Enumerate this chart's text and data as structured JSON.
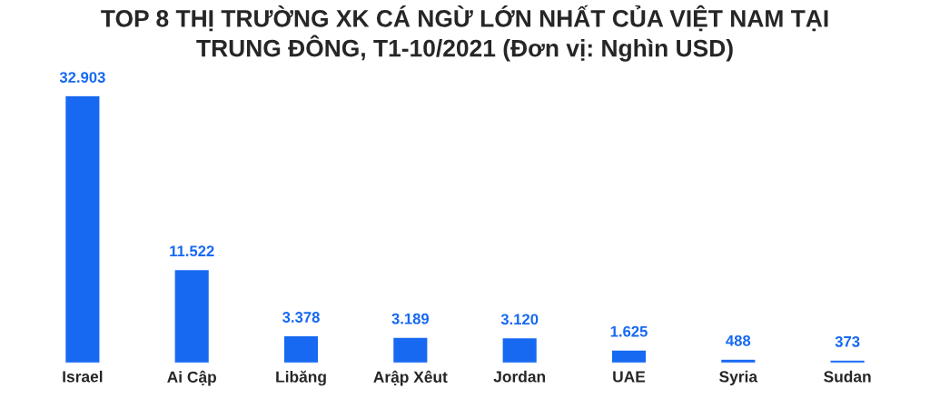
{
  "chart_data": {
    "type": "bar",
    "title": "TOP 8 THỊ TRƯỜNG XK CÁ NGỪ LỚN NHẤT CỦA VIỆT NAM TẠI\nTRUNG ĐÔNG, T1-10/2021 (Đơn vị: Nghìn USD)",
    "categories": [
      "Israel",
      "Ai Cập",
      "Libăng",
      "Arập Xêut",
      "Jordan",
      "UAE",
      "Syria",
      "Sudan"
    ],
    "values": [
      32903,
      11522,
      3378,
      3189,
      3120,
      1625,
      488,
      373
    ],
    "value_labels": [
      "32.903",
      "11.522",
      "3.378",
      "3.189",
      "3.120",
      "1.625",
      "488",
      "373"
    ],
    "color": "#1769f2",
    "grid": false,
    "legend": false
  }
}
